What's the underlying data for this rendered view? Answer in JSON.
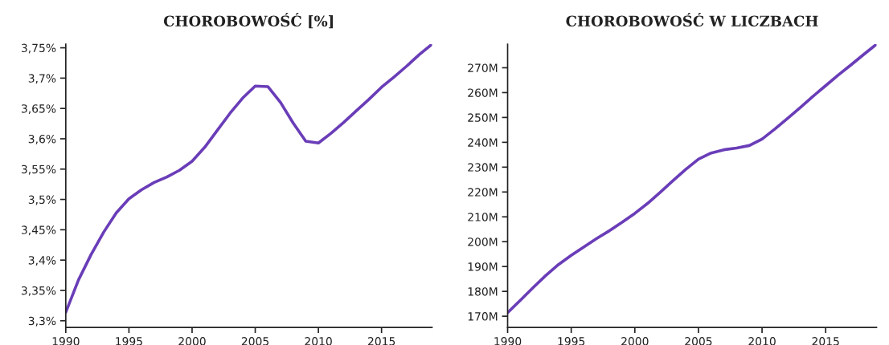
{
  "chart_data": [
    {
      "type": "line",
      "title": "CHOROBOWOŚĆ [%]",
      "x": [
        1990,
        1991,
        1992,
        1993,
        1994,
        1995,
        1996,
        1997,
        1998,
        1999,
        2000,
        2001,
        2002,
        2003,
        2004,
        2005,
        2006,
        2007,
        2008,
        2009,
        2010,
        2011,
        2012,
        2013,
        2014,
        2015,
        2016,
        2017,
        2018,
        2019
      ],
      "series": [
        {
          "color": "#6a3db8",
          "values": [
            3.314,
            3.367,
            3.409,
            3.446,
            3.478,
            3.501,
            3.516,
            3.528,
            3.537,
            3.548,
            3.563,
            3.586,
            3.614,
            3.642,
            3.667,
            3.687,
            3.686,
            3.66,
            3.626,
            3.596,
            3.593,
            3.609,
            3.627,
            3.646,
            3.665,
            3.685,
            3.702,
            3.72,
            3.739,
            3.756
          ]
        }
      ],
      "xlim": [
        1990,
        2019
      ],
      "ylim": [
        3.289,
        3.756
      ],
      "xticks": [
        1990,
        1995,
        2000,
        2005,
        2010,
        2015
      ],
      "yticks": [
        {
          "value": 3.3,
          "label": "3,3%"
        },
        {
          "value": 3.35,
          "label": "3,35%"
        },
        {
          "value": 3.4,
          "label": "3,4%"
        },
        {
          "value": 3.45,
          "label": "3,45%"
        },
        {
          "value": 3.5,
          "label": "3,5%"
        },
        {
          "value": 3.55,
          "label": "3,55%"
        },
        {
          "value": 3.6,
          "label": "3,6%"
        },
        {
          "value": 3.65,
          "label": "3,65%"
        },
        {
          "value": 3.7,
          "label": "3,7%"
        },
        {
          "value": 3.75,
          "label": "3,75%"
        }
      ],
      "marker": "none",
      "line_style": "solid"
    },
    {
      "type": "line",
      "title": "CHOROBOWOŚĆ W LICZBACH",
      "x": [
        1990,
        1991,
        1992,
        1993,
        1994,
        1995,
        1996,
        1997,
        1998,
        1999,
        2000,
        2001,
        2002,
        2003,
        2004,
        2005,
        2006,
        2007,
        2008,
        2009,
        2010,
        2011,
        2012,
        2013,
        2014,
        2015,
        2016,
        2017,
        2018,
        2019
      ],
      "series": [
        {
          "color": "#6a3db8",
          "values": [
            171.4,
            176.4,
            181.5,
            186.4,
            190.8,
            194.5,
            197.9,
            201.3,
            204.4,
            207.8,
            211.4,
            215.4,
            219.9,
            224.6,
            229.1,
            233.2,
            235.7,
            237.0,
            237.7,
            238.7,
            241.3,
            245.3,
            249.6,
            254.0,
            258.5,
            262.8,
            267.1,
            271.2,
            275.4,
            279.5
          ]
        }
      ],
      "xlim": [
        1990,
        2019
      ],
      "ylim": [
        165.5,
        279.5
      ],
      "xticks": [
        1990,
        1995,
        2000,
        2005,
        2010,
        2015
      ],
      "yticks": [
        {
          "value": 170,
          "label": "170M"
        },
        {
          "value": 180,
          "label": "180M"
        },
        {
          "value": 190,
          "label": "190M"
        },
        {
          "value": 200,
          "label": "200M"
        },
        {
          "value": 210,
          "label": "210M"
        },
        {
          "value": 220,
          "label": "220M"
        },
        {
          "value": 230,
          "label": "230M"
        },
        {
          "value": 240,
          "label": "240M"
        },
        {
          "value": 250,
          "label": "250M"
        },
        {
          "value": 260,
          "label": "260M"
        },
        {
          "value": 270,
          "label": "270M"
        }
      ],
      "marker": "none",
      "line_style": "solid"
    }
  ]
}
